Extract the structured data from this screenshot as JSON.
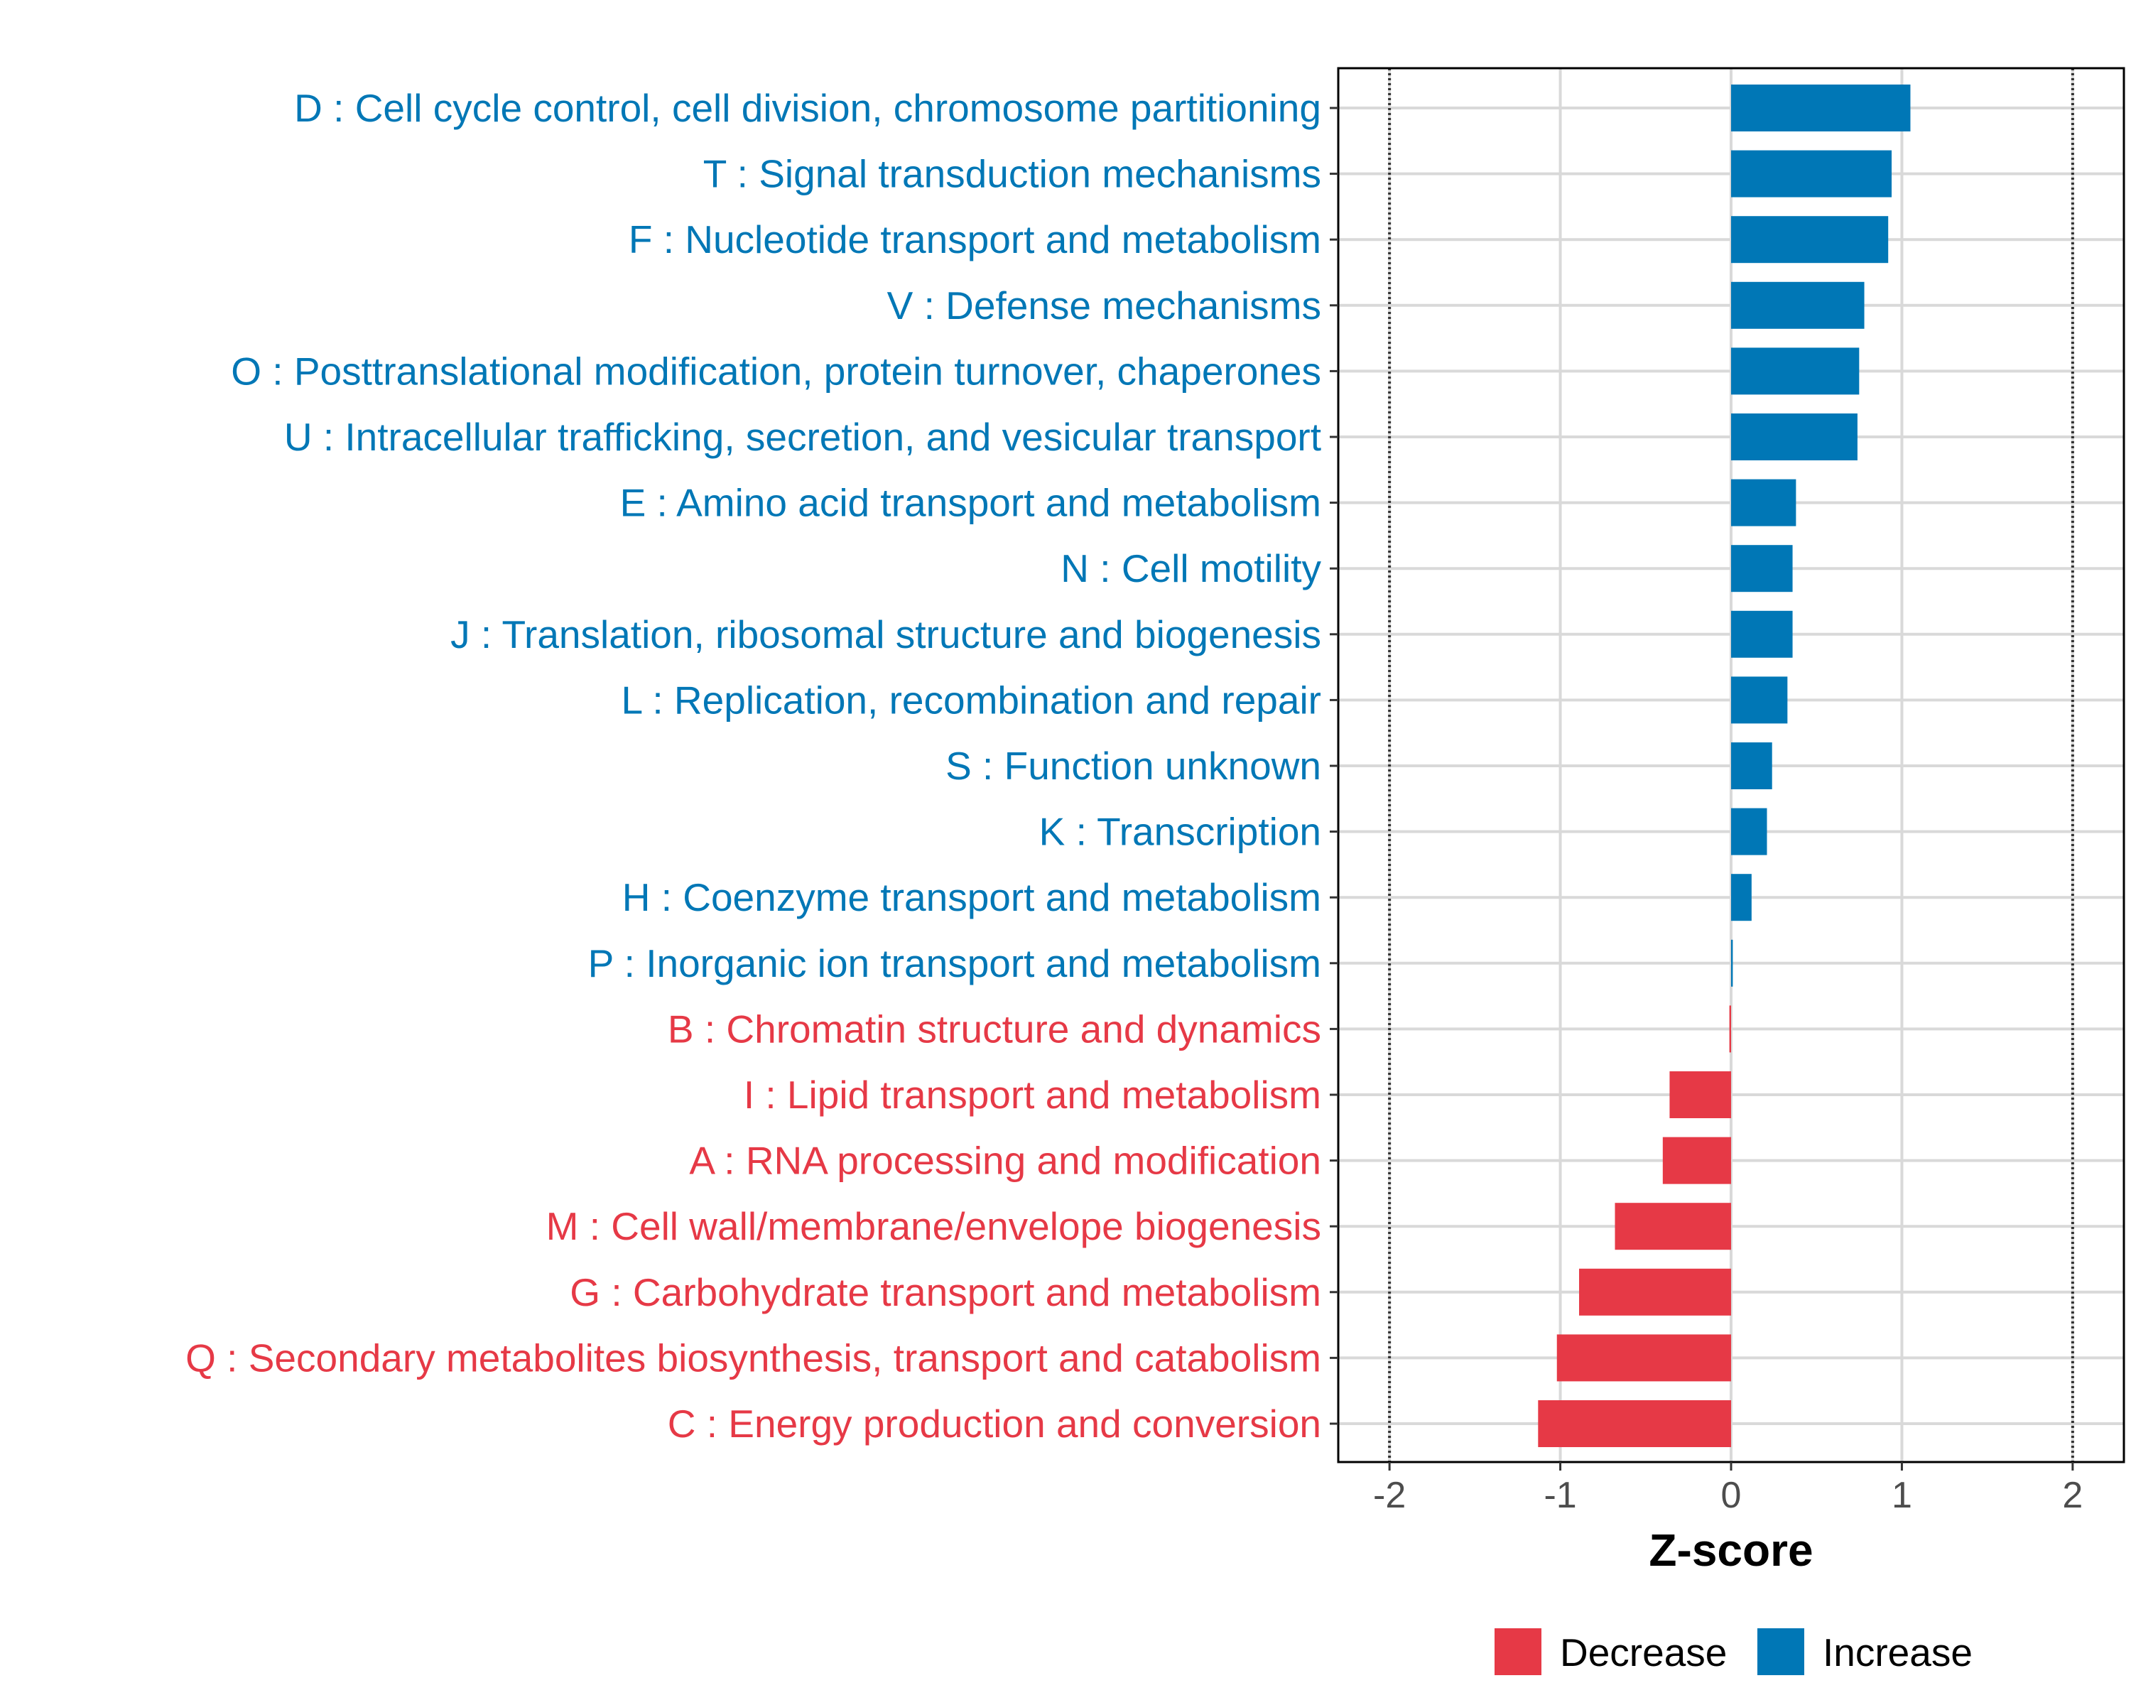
{
  "chart_data": {
    "type": "bar",
    "orientation": "horizontal",
    "xlabel": "Z-score",
    "xlim": [
      -2.3,
      2.3
    ],
    "xticks": [
      -2,
      -1,
      0,
      1,
      2
    ],
    "xtick_labels": [
      "-2",
      "-1",
      "0",
      "1",
      "2"
    ],
    "reference_lines": [
      -2,
      2
    ],
    "grid": true,
    "legend_position": "bottom",
    "categories": [
      "D : Cell cycle control, cell division, chromosome partitioning",
      "T : Signal transduction mechanisms",
      "F : Nucleotide transport and metabolism",
      "V : Defense mechanisms",
      "O : Posttranslational modification, protein turnover, chaperones",
      "U : Intracellular trafficking, secretion, and vesicular transport",
      "E : Amino acid transport and metabolism",
      "N : Cell motility",
      "J : Translation, ribosomal structure and biogenesis",
      "L : Replication, recombination and repair",
      "S : Function unknown",
      "K : Transcription",
      "H : Coenzyme transport and metabolism",
      "P : Inorganic ion transport and metabolism",
      "B : Chromatin structure and dynamics",
      "I : Lipid transport and metabolism",
      "A : RNA processing and modification",
      "M : Cell wall/membrane/envelope biogenesis",
      "G : Carbohydrate transport and metabolism",
      "Q : Secondary metabolites biosynthesis, transport and catabolism",
      "C : Energy production and conversion"
    ],
    "values": [
      1.05,
      0.94,
      0.92,
      0.78,
      0.75,
      0.74,
      0.38,
      0.36,
      0.36,
      0.33,
      0.24,
      0.21,
      0.12,
      0.01,
      -0.01,
      -0.36,
      -0.4,
      -0.68,
      -0.89,
      -1.02,
      -1.13
    ],
    "groups": [
      "Increase",
      "Increase",
      "Increase",
      "Increase",
      "Increase",
      "Increase",
      "Increase",
      "Increase",
      "Increase",
      "Increase",
      "Increase",
      "Increase",
      "Increase",
      "Increase",
      "Decrease",
      "Decrease",
      "Decrease",
      "Decrease",
      "Decrease",
      "Decrease",
      "Decrease"
    ],
    "legend": [
      {
        "name": "Decrease",
        "color": "#E63946"
      },
      {
        "name": "Increase",
        "color": "#0077B6"
      }
    ]
  }
}
